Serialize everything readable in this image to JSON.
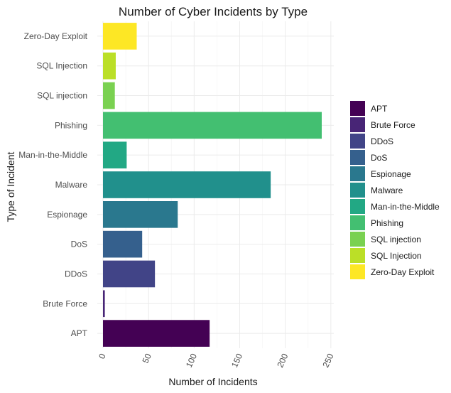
{
  "chart_data": {
    "type": "bar",
    "orientation": "horizontal",
    "title": "Number of Cyber Incidents by Type",
    "xlabel": "Number of Incidents",
    "ylabel": "Type of Incident",
    "xlim": [
      0,
      250
    ],
    "x_ticks": [
      0,
      50,
      100,
      150,
      200,
      250
    ],
    "grid": true,
    "legend_position": "right",
    "categories": [
      "APT",
      "Brute Force",
      "DDoS",
      "DoS",
      "Espionage",
      "Malware",
      "Man-in-the-Middle",
      "Phishing",
      "SQL injection",
      "SQL Injection",
      "Zero-Day Exploit"
    ],
    "values": [
      117,
      2,
      57,
      43,
      82,
      184,
      26,
      240,
      13,
      14,
      37
    ],
    "colors": [
      "#440154",
      "#482576",
      "#414487",
      "#35608D",
      "#2A788E",
      "#21908C",
      "#22A884",
      "#43BF71",
      "#7AD151",
      "#BBDF27",
      "#FDE725"
    ]
  }
}
